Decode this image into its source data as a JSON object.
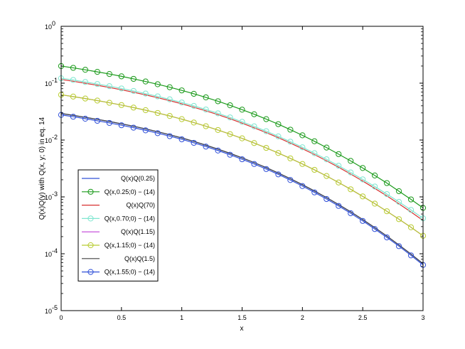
{
  "chart_data": {
    "type": "line",
    "xlabel": "x",
    "ylabel": "Q(x)Q(y) with Q(x, y; 0) in eq. 14",
    "xlim": [
      0,
      3
    ],
    "ylim": [
      1e-05,
      1
    ],
    "yscale": "log",
    "grid": false,
    "legend_position": "bottom-left",
    "x_ticks": [
      0,
      0.5,
      1,
      1.5,
      2,
      2.5,
      3
    ],
    "x_tick_labels": [
      "0",
      "0.5",
      "1",
      "1.5",
      "2",
      "2.5",
      "3"
    ],
    "y_ticks": [
      1e-05,
      0.0001,
      0.001,
      0.01,
      0.1,
      1
    ],
    "y_tick_labels": [
      {
        "base": "10",
        "exp": "-5"
      },
      {
        "base": "10",
        "exp": "-4"
      },
      {
        "base": "10",
        "exp": "-3"
      },
      {
        "base": "10",
        "exp": "-2"
      },
      {
        "base": "10",
        "exp": "-1"
      },
      {
        "base": "10",
        "exp": "0"
      }
    ],
    "x": [
      0,
      0.1,
      0.2,
      0.3,
      0.4,
      0.5,
      0.6,
      0.7,
      0.8,
      0.9,
      1.0,
      1.1,
      1.2,
      1.3,
      1.4,
      1.5,
      1.6,
      1.7,
      1.8,
      1.9,
      2.0,
      2.1,
      2.2,
      2.3,
      2.4,
      2.5,
      2.6,
      2.7,
      2.8,
      2.9,
      3.0
    ],
    "series": [
      {
        "name": "Q(x)Q(0.25)",
        "color": "#3050d8",
        "marker": "none",
        "values": [
          0.0293,
          0.0272,
          0.0251,
          0.0231,
          0.0212,
          0.0193,
          0.0175,
          0.0157,
          0.014,
          0.0124,
          0.0109,
          0.00945,
          0.00812,
          0.00692,
          0.00583,
          0.00486,
          0.00401,
          0.00327,
          0.00263,
          0.00209,
          0.00164,
          0.00127,
          0.000972,
          0.000734,
          0.000546,
          0.0004,
          0.000288,
          0.000205,
          0.000143,
          9.88e-05,
          6.7e-05
        ]
      },
      {
        "name": "Q(x,0.25;0) − (14)",
        "color": "#1a9a1a",
        "marker": "circle",
        "values": [
          0.2,
          0.186,
          0.172,
          0.158,
          0.145,
          0.132,
          0.119,
          0.107,
          0.0957,
          0.0848,
          0.0746,
          0.065,
          0.0562,
          0.0481,
          0.0408,
          0.0342,
          0.0284,
          0.0233,
          0.019,
          0.0152,
          0.0121,
          0.0095,
          0.00737,
          0.00565,
          0.00429,
          0.00322,
          0.00238,
          0.00175,
          0.00126,
          0.000903,
          0.00064
        ]
      },
      {
        "name": "Q(x)Q(70)",
        "color": "#d83030",
        "marker": "none",
        "values": [
          0.116,
          0.108,
          0.0997,
          0.0917,
          0.084,
          0.0765,
          0.0692,
          0.0622,
          0.0555,
          0.0492,
          0.0433,
          0.0377,
          0.0326,
          0.0279,
          0.0237,
          0.0198,
          0.0164,
          0.0135,
          0.011,
          0.00884,
          0.00704,
          0.00554,
          0.00431,
          0.00332,
          0.00252,
          0.0019,
          0.00141,
          0.00104,
          0.000755,
          0.000542,
          0.000385
        ]
      },
      {
        "name": "Q(x,0.70;0) − (14)",
        "color": "#7fe6d0",
        "marker": "circle",
        "values": [
          0.122,
          0.114,
          0.105,
          0.0967,
          0.0887,
          0.0807,
          0.073,
          0.0656,
          0.0586,
          0.0519,
          0.0457,
          0.0398,
          0.0344,
          0.0295,
          0.025,
          0.0209,
          0.0174,
          0.0143,
          0.0116,
          0.00935,
          0.00745,
          0.00587,
          0.00458,
          0.00353,
          0.00269,
          0.00203,
          0.00152,
          0.00112,
          0.000817,
          0.00059,
          0.000421
        ]
      },
      {
        "name": "Q(x)Q(1.15)",
        "color": "#c040d8",
        "marker": "none",
        "values": [
          0.0625,
          0.0581,
          0.0537,
          0.0494,
          0.0452,
          0.0412,
          0.0372,
          0.0335,
          0.0299,
          0.0265,
          0.0233,
          0.0203,
          0.0175,
          0.015,
          0.0127,
          0.0107,
          0.00885,
          0.00727,
          0.00591,
          0.00476,
          0.00379,
          0.00299,
          0.00233,
          0.00179,
          0.00136,
          0.00102,
          0.00076,
          0.000559,
          0.000406,
          0.000292,
          0.000207
        ]
      },
      {
        "name": "Q(x,1.15;0) − (14)",
        "color": "#b8cc30",
        "marker": "circle",
        "values": [
          0.0625,
          0.0581,
          0.0537,
          0.0494,
          0.0452,
          0.0412,
          0.0372,
          0.0335,
          0.0299,
          0.0265,
          0.0233,
          0.0203,
          0.0175,
          0.015,
          0.0127,
          0.0107,
          0.00885,
          0.00727,
          0.00591,
          0.00476,
          0.00379,
          0.00299,
          0.00233,
          0.00179,
          0.00136,
          0.00102,
          0.00076,
          0.000559,
          0.000406,
          0.000292,
          0.000207
        ]
      },
      {
        "name": "Q(x)Q(1.5)",
        "color": "#404040",
        "marker": "none",
        "values": [
          0.0293,
          0.0272,
          0.0251,
          0.0231,
          0.0212,
          0.0193,
          0.0175,
          0.0157,
          0.014,
          0.0124,
          0.0109,
          0.00945,
          0.00812,
          0.00692,
          0.00583,
          0.00486,
          0.00401,
          0.00327,
          0.00263,
          0.00209,
          0.00164,
          0.00127,
          0.000972,
          0.000734,
          0.000546,
          0.0004,
          0.000288,
          0.000205,
          0.000143,
          9.88e-05,
          6.7e-05
        ]
      },
      {
        "name": "Q(x,1.55;0) − (14)",
        "color": "#3050d8",
        "marker": "circle",
        "values": [
          0.0277,
          0.0257,
          0.0237,
          0.0218,
          0.02,
          0.0182,
          0.0165,
          0.0148,
          0.0132,
          0.0117,
          0.0103,
          0.00893,
          0.00767,
          0.00654,
          0.00551,
          0.00459,
          0.00379,
          0.00309,
          0.00249,
          0.00198,
          0.00155,
          0.0012,
          0.000918,
          0.000694,
          0.000516,
          0.000378,
          0.000272,
          0.000194,
          0.000136,
          9.36e-05,
          6.35e-05
        ]
      }
    ]
  }
}
